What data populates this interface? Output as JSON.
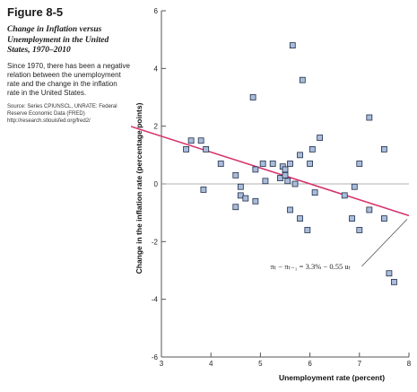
{
  "figure": {
    "number": "Figure 8-5",
    "title": "Change in Inflation versus Unemployment in the United States, 1970–2010",
    "caption": "Since 1970, there has been a negative relation between the unemployment rate and the change in the inflation rate in the United States.",
    "source": "Source: Series CPIUNSCL, UNRATE: Federal Reserve Economic Data (FRED) http://research.stlouisfed.org/fred2/"
  },
  "colors": {
    "regression_line": "#d6336c",
    "marker_fill": "#a9bcd9",
    "marker_stroke": "#1f2d4a",
    "axis": "#555555",
    "zero_line": "#999999"
  },
  "chart_data": {
    "type": "scatter",
    "xlabel": "Unemployment rate (percent)",
    "ylabel": "Change in the inflation rate (percentage points)",
    "xlim": [
      3,
      8
    ],
    "ylim": [
      -6,
      6
    ],
    "xticks": [
      "3",
      "4",
      "5",
      "6",
      "7",
      "8"
    ],
    "yticks": [
      "-6",
      "-4",
      "-2",
      "0",
      "2",
      "4",
      "6"
    ],
    "grid": false,
    "zero_line": true,
    "points": [
      {
        "x": 3.5,
        "y": 1.2
      },
      {
        "x": 3.6,
        "y": 1.5
      },
      {
        "x": 3.8,
        "y": 1.5
      },
      {
        "x": 3.9,
        "y": 1.2
      },
      {
        "x": 3.85,
        "y": -0.2
      },
      {
        "x": 4.2,
        "y": 0.7
      },
      {
        "x": 4.5,
        "y": 0.3
      },
      {
        "x": 4.5,
        "y": -0.8
      },
      {
        "x": 4.6,
        "y": -0.4
      },
      {
        "x": 4.6,
        "y": -0.1
      },
      {
        "x": 4.7,
        "y": -0.5
      },
      {
        "x": 4.9,
        "y": -0.6
      },
      {
        "x": 4.9,
        "y": 0.5
      },
      {
        "x": 4.85,
        "y": 3.0
      },
      {
        "x": 5.05,
        "y": 0.7
      },
      {
        "x": 5.1,
        "y": 0.1
      },
      {
        "x": 5.25,
        "y": 0.7
      },
      {
        "x": 5.4,
        "y": 0.2
      },
      {
        "x": 5.45,
        "y": 0.6
      },
      {
        "x": 5.5,
        "y": 0.5
      },
      {
        "x": 5.5,
        "y": 0.3
      },
      {
        "x": 5.55,
        "y": 0.1
      },
      {
        "x": 5.6,
        "y": 0.7
      },
      {
        "x": 5.6,
        "y": -0.9
      },
      {
        "x": 5.65,
        "y": 4.8
      },
      {
        "x": 5.7,
        "y": 0.0
      },
      {
        "x": 5.8,
        "y": 1.0
      },
      {
        "x": 5.8,
        "y": -1.2
      },
      {
        "x": 5.85,
        "y": 3.6
      },
      {
        "x": 5.95,
        "y": -1.6
      },
      {
        "x": 6.0,
        "y": 0.7
      },
      {
        "x": 6.05,
        "y": 1.2
      },
      {
        "x": 6.1,
        "y": -0.3
      },
      {
        "x": 6.2,
        "y": 1.6
      },
      {
        "x": 6.7,
        "y": -0.4
      },
      {
        "x": 6.85,
        "y": -1.2
      },
      {
        "x": 6.9,
        "y": -0.1
      },
      {
        "x": 7.0,
        "y": -1.6
      },
      {
        "x": 7.0,
        "y": 0.7
      },
      {
        "x": 7.2,
        "y": 2.3
      },
      {
        "x": 7.2,
        "y": -0.9
      },
      {
        "x": 7.5,
        "y": 1.2
      },
      {
        "x": 7.5,
        "y": -1.2
      },
      {
        "x": 7.6,
        "y": -3.1
      },
      {
        "x": 7.7,
        "y": -3.4
      }
    ],
    "regression": {
      "intercept": 3.3,
      "slope": -0.55
    },
    "annotation": {
      "label": "πₜ − πₜ₋₁ = 3.3% − 0.55 uₜ",
      "data_point": [
        8.0,
        -1.1
      ],
      "label_anchor": [
        5.2,
        -2.95
      ]
    }
  }
}
